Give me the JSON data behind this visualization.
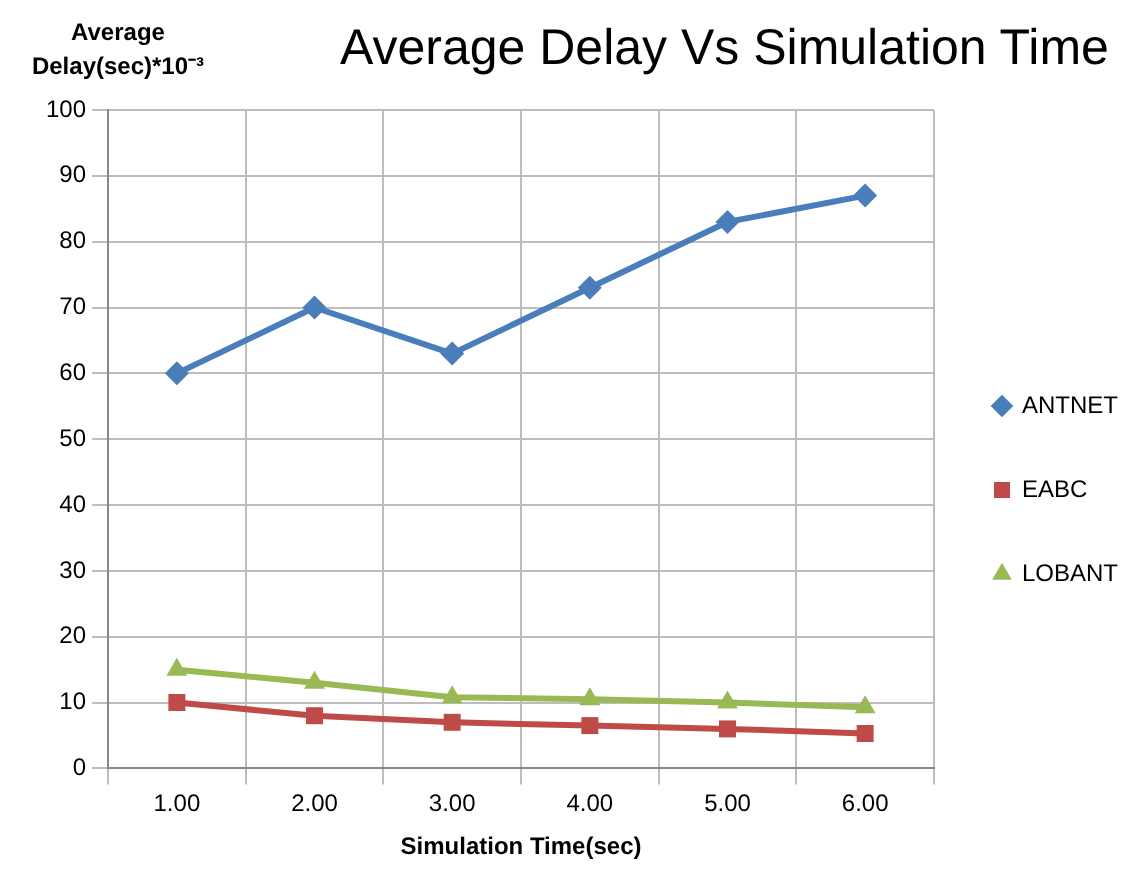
{
  "chart_data": {
    "type": "line",
    "title": "Average Delay Vs Simulation Time",
    "xlabel": "Simulation Time(sec)",
    "ylabel": "Average Delay(sec)*10⁻³",
    "categories": [
      "1.00",
      "2.00",
      "3.00",
      "4.00",
      "5.00",
      "6.00"
    ],
    "series": [
      {
        "name": "ANTNET",
        "color": "#4a7ebb",
        "marker": "diamond",
        "values": [
          60,
          70,
          63,
          73,
          83,
          87
        ]
      },
      {
        "name": "EABC",
        "color": "#be4b48",
        "marker": "square",
        "values": [
          10,
          8,
          7,
          6.5,
          6,
          5.3
        ]
      },
      {
        "name": "LOBANT",
        "color": "#98b954",
        "marker": "triangle",
        "values": [
          15,
          13,
          10.8,
          10.5,
          10,
          9.3
        ]
      }
    ],
    "ylim": [
      0,
      100
    ],
    "yticks": [
      0,
      10,
      20,
      30,
      40,
      50,
      60,
      70,
      80,
      90,
      100
    ],
    "grid": true,
    "legend": "right"
  }
}
